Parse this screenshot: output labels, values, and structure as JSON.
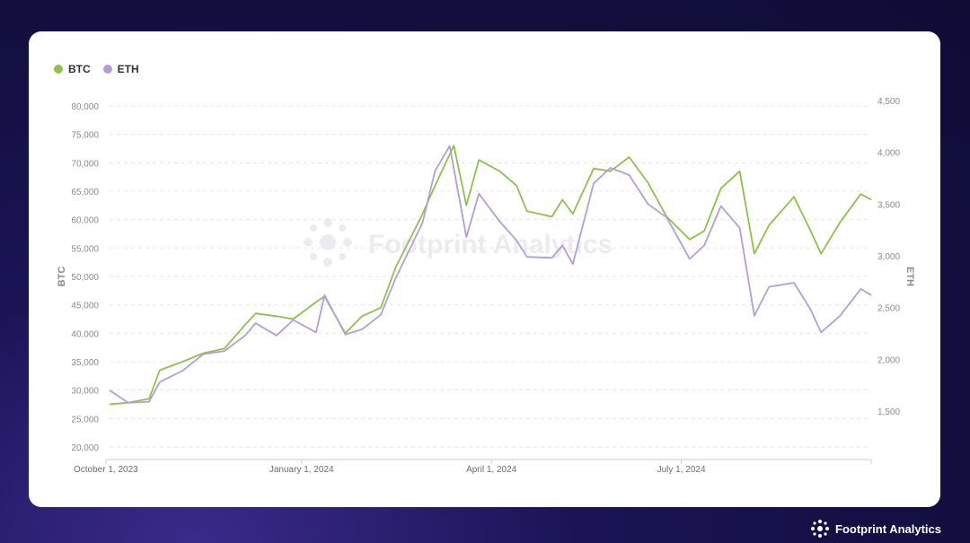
{
  "brand": {
    "name": "Footprint Analytics",
    "watermark": "Footprint Analytics"
  },
  "colors": {
    "btc": "#8bc34a",
    "eth": "#b39ddb",
    "background": "#120f3f"
  },
  "chart_data": {
    "type": "line",
    "title": "",
    "legend": {
      "placement": "top-left",
      "entries": [
        "BTC",
        "ETH"
      ]
    },
    "x_ticks": [
      "October 1, 2023",
      "January 1, 2024",
      "April 1, 2024",
      "July 1, 2024"
    ],
    "y_left": {
      "label": "BTC",
      "range": [
        20000,
        80000
      ],
      "ticks": [
        "80,000",
        "75,000",
        "70,000",
        "65,000",
        "60,000",
        "55,000",
        "50,000",
        "45,000",
        "40,000",
        "35,000",
        "30,000",
        "25,000",
        "20,000"
      ]
    },
    "y_right": {
      "label": "ETH",
      "range": [
        1500,
        4500
      ],
      "ticks": [
        "4,500",
        "4,000",
        "3,500",
        "3,000",
        "2,500",
        "2,000",
        "1,500"
      ]
    },
    "grid": true,
    "x_range": [
      "2023-10-01",
      "2024-09-30"
    ],
    "series": [
      {
        "name": "BTC",
        "axis": "left",
        "points": [
          [
            "2023-10-01",
            27500
          ],
          [
            "2023-10-10",
            27800
          ],
          [
            "2023-10-20",
            28500
          ],
          [
            "2023-10-25",
            33500
          ],
          [
            "2023-11-05",
            35000
          ],
          [
            "2023-11-15",
            36500
          ],
          [
            "2023-11-25",
            37300
          ],
          [
            "2023-12-05",
            41500
          ],
          [
            "2023-12-10",
            43500
          ],
          [
            "2023-12-20",
            43000
          ],
          [
            "2023-12-28",
            42500
          ],
          [
            "2024-01-08",
            45500
          ],
          [
            "2024-01-12",
            46500
          ],
          [
            "2024-01-22",
            40000
          ],
          [
            "2024-01-30",
            43000
          ],
          [
            "2024-02-08",
            44500
          ],
          [
            "2024-02-15",
            51500
          ],
          [
            "2024-02-28",
            61000
          ],
          [
            "2024-03-05",
            66000
          ],
          [
            "2024-03-14",
            73000
          ],
          [
            "2024-03-20",
            62500
          ],
          [
            "2024-03-26",
            70500
          ],
          [
            "2024-04-05",
            68500
          ],
          [
            "2024-04-13",
            66000
          ],
          [
            "2024-04-18",
            61500
          ],
          [
            "2024-04-30",
            60500
          ],
          [
            "2024-05-05",
            63500
          ],
          [
            "2024-05-10",
            61000
          ],
          [
            "2024-05-20",
            69000
          ],
          [
            "2024-05-28",
            68500
          ],
          [
            "2024-06-06",
            71000
          ],
          [
            "2024-06-15",
            66500
          ],
          [
            "2024-06-24",
            60500
          ],
          [
            "2024-07-05",
            56500
          ],
          [
            "2024-07-12",
            58000
          ],
          [
            "2024-07-20",
            65500
          ],
          [
            "2024-07-29",
            68500
          ],
          [
            "2024-08-05",
            54000
          ],
          [
            "2024-08-12",
            59000
          ],
          [
            "2024-08-24",
            64000
          ],
          [
            "2024-09-01",
            58000
          ],
          [
            "2024-09-06",
            54000
          ],
          [
            "2024-09-15",
            59500
          ],
          [
            "2024-09-25",
            64500
          ],
          [
            "2024-09-30",
            63500
          ]
        ]
      },
      {
        "name": "ETH",
        "axis": "left-scaled",
        "points": [
          [
            "2023-10-01",
            1700
          ],
          [
            "2023-10-10",
            1580
          ],
          [
            "2023-10-20",
            1590
          ],
          [
            "2023-10-25",
            1780
          ],
          [
            "2023-11-05",
            1890
          ],
          [
            "2023-11-15",
            2050
          ],
          [
            "2023-11-25",
            2080
          ],
          [
            "2023-12-05",
            2230
          ],
          [
            "2023-12-10",
            2350
          ],
          [
            "2023-12-20",
            2230
          ],
          [
            "2023-12-28",
            2380
          ],
          [
            "2024-01-08",
            2260
          ],
          [
            "2024-01-12",
            2620
          ],
          [
            "2024-01-22",
            2240
          ],
          [
            "2024-01-30",
            2290
          ],
          [
            "2024-02-08",
            2430
          ],
          [
            "2024-02-15",
            2780
          ],
          [
            "2024-02-28",
            3320
          ],
          [
            "2024-03-05",
            3820
          ],
          [
            "2024-03-12",
            4060
          ],
          [
            "2024-03-20",
            3180
          ],
          [
            "2024-03-26",
            3600
          ],
          [
            "2024-04-05",
            3330
          ],
          [
            "2024-04-13",
            3150
          ],
          [
            "2024-04-18",
            2990
          ],
          [
            "2024-04-30",
            2980
          ],
          [
            "2024-05-05",
            3100
          ],
          [
            "2024-05-10",
            2920
          ],
          [
            "2024-05-20",
            3700
          ],
          [
            "2024-05-28",
            3850
          ],
          [
            "2024-06-06",
            3780
          ],
          [
            "2024-06-15",
            3500
          ],
          [
            "2024-06-24",
            3370
          ],
          [
            "2024-07-05",
            2970
          ],
          [
            "2024-07-12",
            3100
          ],
          [
            "2024-07-20",
            3480
          ],
          [
            "2024-07-29",
            3270
          ],
          [
            "2024-08-05",
            2420
          ],
          [
            "2024-08-12",
            2700
          ],
          [
            "2024-08-24",
            2740
          ],
          [
            "2024-09-01",
            2480
          ],
          [
            "2024-09-06",
            2260
          ],
          [
            "2024-09-15",
            2420
          ],
          [
            "2024-09-25",
            2680
          ],
          [
            "2024-09-30",
            2620
          ]
        ]
      }
    ]
  }
}
